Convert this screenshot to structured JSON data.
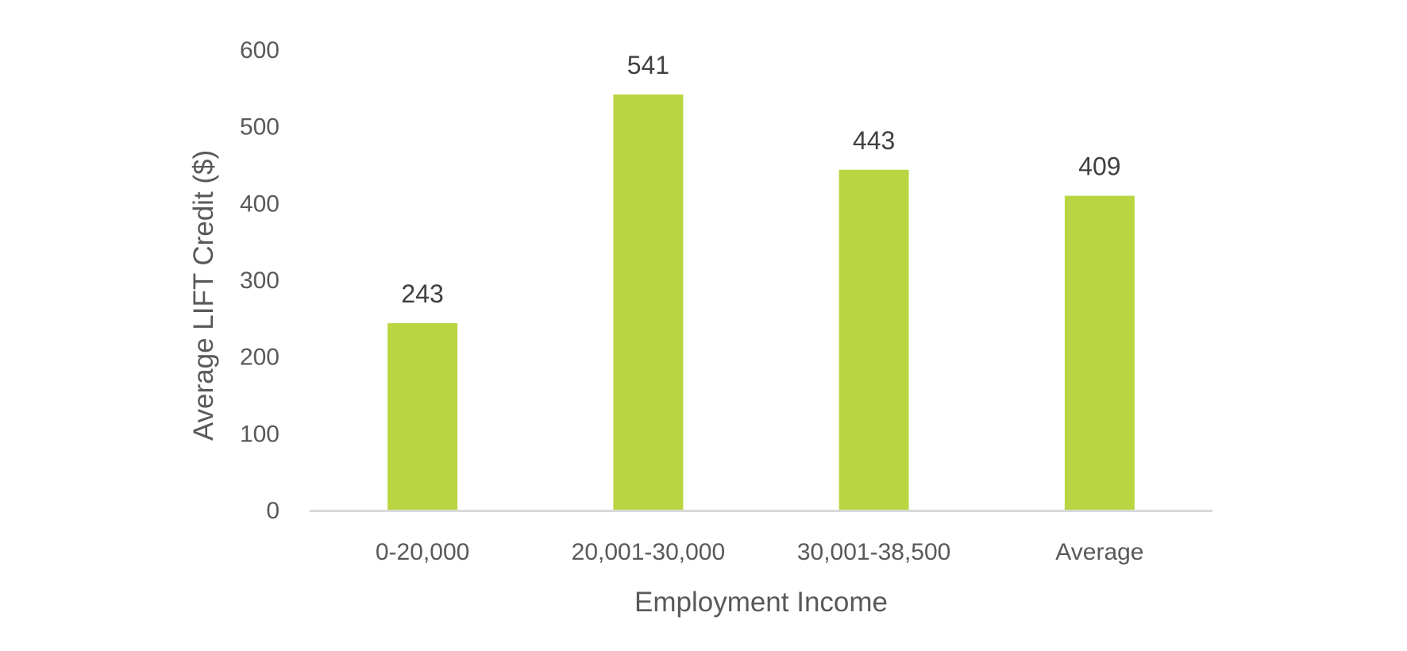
{
  "chart_data": {
    "type": "bar",
    "title": "",
    "xlabel": "Employment Income",
    "ylabel": "Average LIFT Credit ($)",
    "categories": [
      "0-20,000",
      "20,001-30,000",
      "30,001-38,500",
      "Average"
    ],
    "values": [
      243,
      541,
      443,
      409
    ],
    "data_labels": [
      "243",
      "541",
      "443",
      "409"
    ],
    "ylim": [
      0,
      600
    ],
    "yticks": [
      0,
      100,
      200,
      300,
      400,
      500,
      600
    ],
    "ytick_labels": [
      "0",
      "100",
      "200",
      "300",
      "400",
      "500",
      "600"
    ],
    "grid": false,
    "legend": "none",
    "colors": {
      "bar": "#B9D642",
      "axis": "#D9D9D9"
    }
  }
}
